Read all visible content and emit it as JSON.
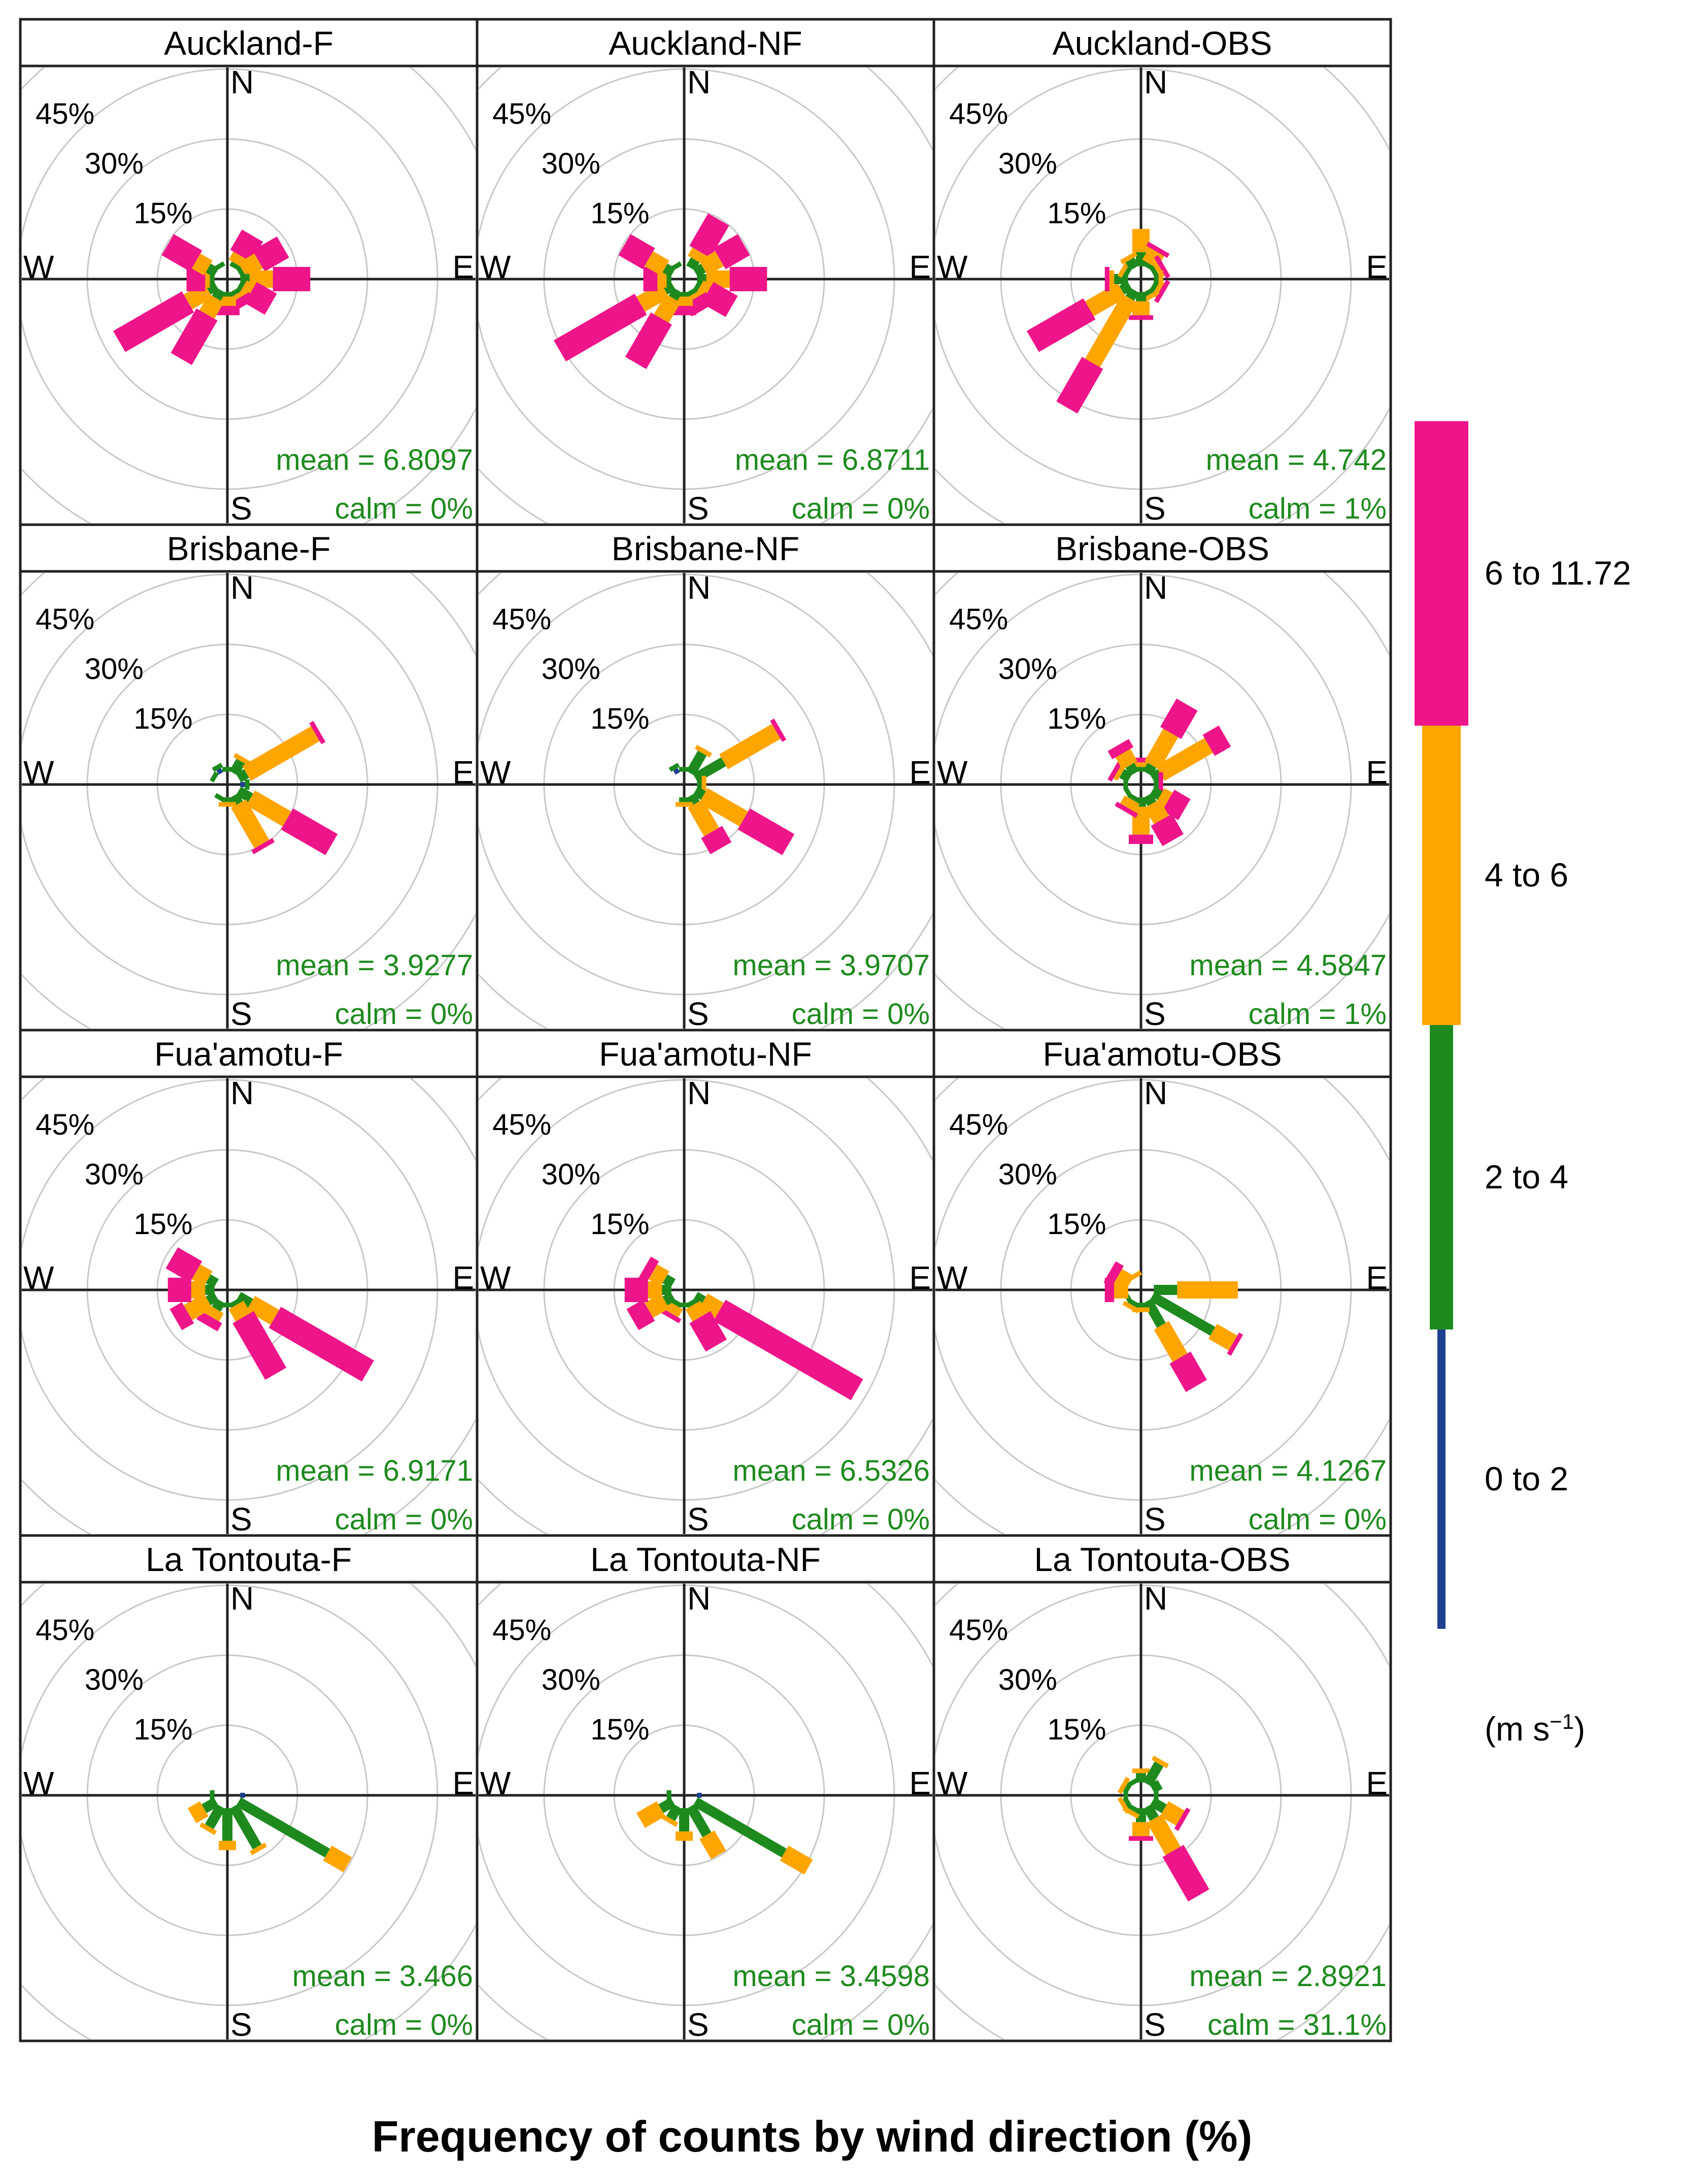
{
  "figure": {
    "xlabel": "Frequency of counts by wind direction (%)"
  },
  "legend": {
    "unit_text": "(m s",
    "unit_sup": "−1",
    "unit_close": ")",
    "bins": [
      {
        "label": "0 to 2",
        "color": "#1f3f8f"
      },
      {
        "label": "2 to 4",
        "color": "#1e8a1e"
      },
      {
        "label": "4 to 6",
        "color": "#ffa500"
      },
      {
        "label": "6 to 11.72",
        "color": "#ee1489"
      }
    ]
  },
  "chart_data": {
    "type": "windrose",
    "directions_deg": [
      0,
      30,
      60,
      90,
      120,
      150,
      180,
      210,
      240,
      270,
      300,
      330
    ],
    "ring_labels": [
      "15%",
      "30%",
      "45%"
    ],
    "rings_pct": [
      15,
      30,
      45,
      60
    ],
    "compass": {
      "n": "N",
      "e": "E",
      "s": "S",
      "w": "W"
    },
    "bin_colors": [
      "#1f3f8f",
      "#1e8a1e",
      "#ffa500",
      "#ee1489"
    ],
    "panels": [
      {
        "title": "Auckland-F",
        "mean": "mean = 6.8097",
        "calm": "calm = 0%",
        "cumulative": [
          [
            0,
            0,
            0,
            0
          ],
          [
            0,
            1,
            3,
            8
          ],
          [
            0,
            1,
            5,
            11
          ],
          [
            0,
            2,
            7,
            15
          ],
          [
            0,
            1,
            3,
            8
          ],
          [
            0,
            1,
            2,
            4
          ],
          [
            0,
            1,
            3,
            5
          ],
          [
            0,
            2,
            6,
            17
          ],
          [
            0,
            2,
            7,
            24
          ],
          [
            0,
            1,
            2,
            6
          ],
          [
            0,
            2,
            5,
            12
          ],
          [
            0,
            1,
            1,
            1
          ]
        ]
      },
      {
        "title": "Auckland-NF",
        "mean": "mean = 6.8711",
        "calm": "calm = 0%",
        "cumulative": [
          [
            0,
            0,
            0,
            0
          ],
          [
            0,
            2,
            4,
            12
          ],
          [
            0,
            2,
            6,
            12
          ],
          [
            0,
            2,
            7,
            15
          ],
          [
            0,
            1,
            3,
            9
          ],
          [
            0,
            1,
            2,
            5
          ],
          [
            0,
            1,
            3,
            5
          ],
          [
            0,
            2,
            7,
            18
          ],
          [
            0,
            2,
            8,
            28
          ],
          [
            0,
            1,
            3,
            6
          ],
          [
            0,
            2,
            6,
            12
          ],
          [
            0,
            1,
            1,
            1
          ]
        ]
      },
      {
        "title": "Auckland-OBS",
        "mean": "mean = 4.742",
        "calm": "calm = 1%",
        "cumulative": [
          [
            0,
            3,
            8,
            8
          ],
          [
            0,
            1,
            4,
            5
          ],
          [
            0,
            1,
            2,
            3
          ],
          [
            0,
            1,
            2,
            2
          ],
          [
            0,
            1,
            2,
            3
          ],
          [
            0,
            1,
            2,
            2
          ],
          [
            0,
            2,
            5,
            6
          ],
          [
            0,
            2,
            18,
            29
          ],
          [
            0,
            2,
            10,
            24
          ],
          [
            0,
            3,
            4,
            5
          ],
          [
            0,
            1,
            2,
            2
          ],
          [
            0,
            2,
            3,
            3
          ]
        ]
      },
      {
        "title": "Brisbane-F",
        "mean": "mean = 3.9277",
        "calm": "calm = 0%",
        "cumulative": [
          [
            0,
            1,
            1,
            1
          ],
          [
            0,
            3,
            4,
            4
          ],
          [
            0,
            2,
            19,
            20
          ],
          [
            1,
            2,
            2,
            2
          ],
          [
            0,
            3,
            12,
            23
          ],
          [
            0,
            2,
            12,
            13
          ],
          [
            0,
            1,
            2,
            2
          ],
          [
            0,
            1,
            1,
            1
          ],
          [
            0,
            0,
            0,
            0
          ],
          [
            0,
            0,
            0,
            0
          ],
          [
            0,
            1,
            1,
            1
          ],
          [
            1,
            2,
            2,
            2
          ]
        ]
      },
      {
        "title": "Brisbane-NF",
        "mean": "mean = 3.9707",
        "calm": "calm = 0%",
        "cumulative": [
          [
            0,
            1,
            1,
            1
          ],
          [
            0,
            5,
            6,
            6
          ],
          [
            0,
            7,
            20,
            21
          ],
          [
            0,
            1,
            2,
            2
          ],
          [
            0,
            2,
            12,
            23
          ],
          [
            0,
            2,
            9,
            13
          ],
          [
            0,
            1,
            2,
            2
          ],
          [
            0,
            0,
            0,
            0
          ],
          [
            0,
            0,
            0,
            0
          ],
          [
            0,
            0,
            0,
            0
          ],
          [
            0,
            0,
            0,
            0
          ],
          [
            1,
            2,
            2,
            2
          ]
        ]
      },
      {
        "title": "Brisbane-OBS",
        "mean": "mean = 4.5847",
        "calm": "calm = 1%",
        "cumulative": [
          [
            0,
            1,
            2,
            3
          ],
          [
            0,
            2,
            10,
            17
          ],
          [
            0,
            2,
            14,
            18
          ],
          [
            0,
            1,
            1,
            2
          ],
          [
            0,
            2,
            4,
            8
          ],
          [
            0,
            2,
            6,
            11
          ],
          [
            0,
            2,
            8,
            10
          ],
          [
            0,
            1,
            3,
            4
          ],
          [
            0,
            1,
            1,
            1
          ],
          [
            0,
            1,
            1,
            1
          ],
          [
            0,
            2,
            3,
            4
          ],
          [
            0,
            2,
            5,
            7
          ]
        ]
      },
      {
        "title": "Fua'amotu-F",
        "mean": "mean = 6.9171",
        "calm": "calm = 0%",
        "cumulative": [
          [
            0,
            0,
            0,
            0
          ],
          [
            0,
            0,
            0,
            0
          ],
          [
            0,
            0,
            0,
            0
          ],
          [
            0,
            0,
            0,
            0
          ],
          [
            0,
            3,
            9,
            32
          ],
          [
            0,
            1,
            4,
            18
          ],
          [
            0,
            1,
            1,
            1
          ],
          [
            0,
            2,
            4,
            6
          ],
          [
            0,
            2,
            7,
            10
          ],
          [
            0,
            2,
            5,
            10
          ],
          [
            0,
            2,
            5,
            11
          ],
          [
            0,
            0,
            0,
            0
          ]
        ]
      },
      {
        "title": "Fua'amotu-NF",
        "mean": "mean = 6.5326",
        "calm": "calm = 0%",
        "cumulative": [
          [
            0,
            0,
            0,
            0
          ],
          [
            0,
            0,
            0,
            0
          ],
          [
            0,
            0,
            0,
            0
          ],
          [
            0,
            0,
            0,
            0
          ],
          [
            0,
            2,
            6,
            40
          ],
          [
            0,
            1,
            4,
            11
          ],
          [
            0,
            1,
            1,
            1
          ],
          [
            0,
            1,
            3,
            4
          ],
          [
            0,
            2,
            6,
            10
          ],
          [
            0,
            2,
            5,
            10
          ],
          [
            0,
            2,
            5,
            7
          ],
          [
            0,
            0,
            0,
            0
          ]
        ]
      },
      {
        "title": "Fua'amotu-OBS",
        "mean": "mean = 4.1267",
        "calm": "calm = 0%",
        "cumulative": [
          [
            0,
            0,
            0,
            0
          ],
          [
            0,
            0,
            0,
            0
          ],
          [
            0,
            0,
            0,
            0
          ],
          [
            0,
            5,
            18,
            18
          ],
          [
            0,
            15,
            20,
            21
          ],
          [
            0,
            6,
            14,
            21
          ],
          [
            0,
            1,
            2,
            2
          ],
          [
            0,
            1,
            2,
            2
          ],
          [
            0,
            1,
            1,
            1
          ],
          [
            0,
            0,
            3,
            5
          ],
          [
            0,
            0,
            3,
            5
          ],
          [
            0,
            0,
            1,
            1
          ]
        ]
      },
      {
        "title": "La Tontouta-F",
        "mean": "mean = 3.466",
        "calm": "calm = 0%",
        "cumulative": [
          [
            0,
            0,
            0,
            0
          ],
          [
            0,
            0,
            0,
            0
          ],
          [
            0,
            0,
            0,
            0
          ],
          [
            1,
            1,
            1,
            1
          ],
          [
            0,
            22,
            27,
            27
          ],
          [
            0,
            10,
            11,
            11
          ],
          [
            0,
            7,
            9,
            9
          ],
          [
            0,
            5,
            6,
            6
          ],
          [
            0,
            3,
            6,
            6
          ],
          [
            0,
            1,
            1,
            1
          ],
          [
            0,
            0,
            0,
            0
          ],
          [
            0,
            0,
            0,
            0
          ]
        ]
      },
      {
        "title": "La Tontouta-NF",
        "mean": "mean = 3.4598",
        "calm": "calm = 0%",
        "cumulative": [
          [
            0,
            0,
            0,
            0
          ],
          [
            0,
            0,
            0,
            0
          ],
          [
            0,
            0,
            0,
            0
          ],
          [
            1,
            1,
            1,
            1
          ],
          [
            0,
            22,
            28,
            28
          ],
          [
            0,
            7,
            12,
            12
          ],
          [
            0,
            5,
            7,
            7
          ],
          [
            0,
            3,
            4,
            4
          ],
          [
            0,
            3,
            8,
            8
          ],
          [
            0,
            1,
            1,
            1
          ],
          [
            0,
            0,
            0,
            0
          ],
          [
            0,
            0,
            0,
            0
          ]
        ]
      },
      {
        "title": "La Tontouta-OBS",
        "mean": "mean = 2.8921",
        "calm": "calm = 31.1%",
        "cumulative": [
          [
            0,
            2,
            3,
            3
          ],
          [
            0,
            5,
            6,
            6
          ],
          [
            0,
            2,
            2,
            2
          ],
          [
            0,
            1,
            1,
            1
          ],
          [
            0,
            3,
            7,
            8
          ],
          [
            0,
            3,
            11,
            22
          ],
          [
            0,
            3,
            6,
            7
          ],
          [
            0,
            1,
            2,
            2
          ],
          [
            0,
            1,
            2,
            2
          ],
          [
            0,
            1,
            1,
            1
          ],
          [
            0,
            1,
            2,
            2
          ],
          [
            0,
            1,
            1,
            1
          ]
        ]
      }
    ]
  }
}
